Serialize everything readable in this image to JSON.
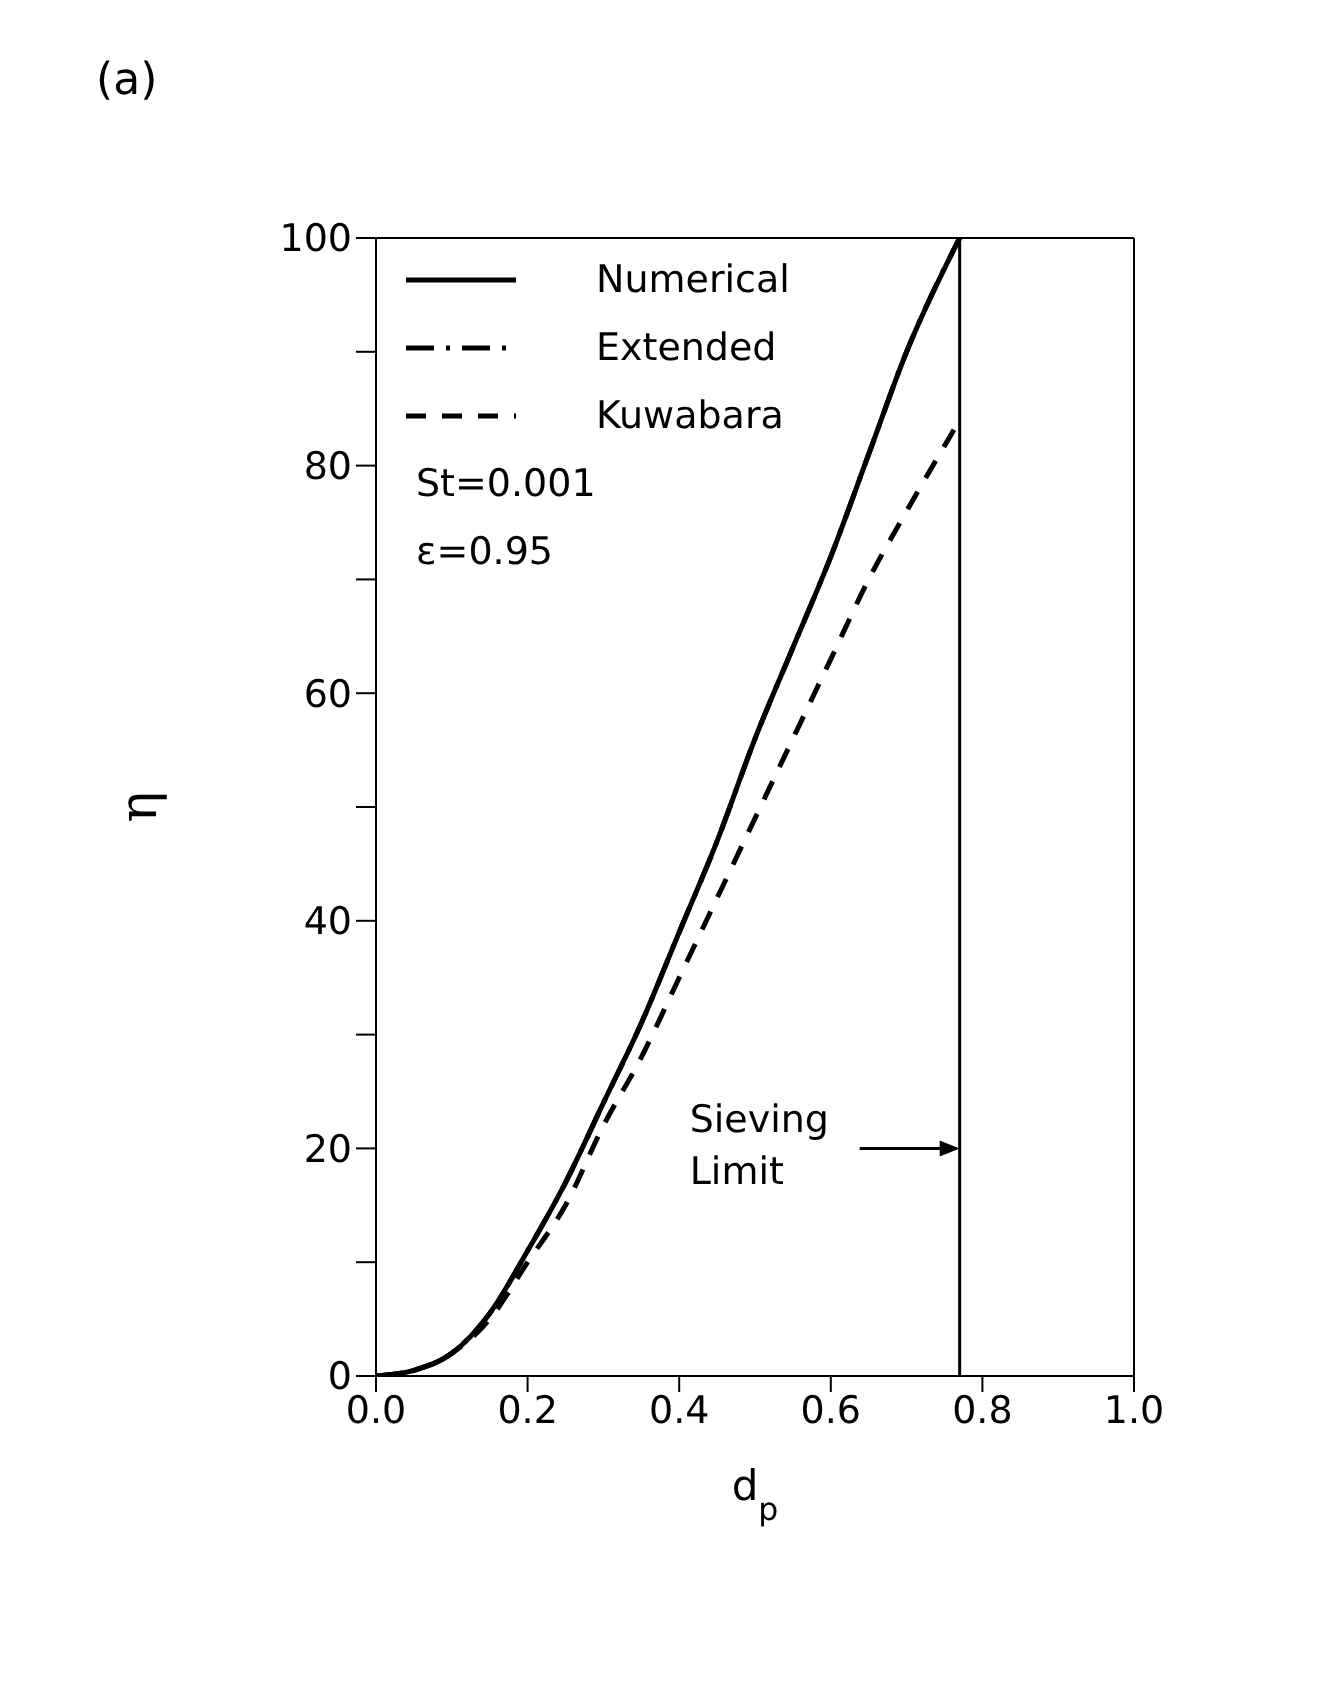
{
  "chart_data": {
    "type": "line",
    "title": "(a)",
    "xlabel": "d$_{p}$",
    "ylabel": "η",
    "xlim": [
      0,
      1
    ],
    "xticks": [
      {
        "value": 0,
        "label": "0.0"
      },
      0.2,
      0.4,
      0.6,
      0.8,
      {
        "value": 1,
        "label": "1.0"
      }
    ],
    "ylim": [
      0,
      100
    ],
    "yticks": [
      0,
      {
        "value": 10,
        "label": null
      },
      20,
      {
        "value": 30,
        "label": null
      },
      40,
      {
        "value": 50,
        "label": null
      },
      60,
      {
        "value": 70,
        "label": null
      },
      80,
      {
        "value": 90,
        "label": null
      },
      100
    ],
    "x": [
      0,
      0.05,
      0.1,
      0.15,
      0.2,
      0.25,
      0.3,
      0.35,
      0.4,
      0.45,
      0.5,
      0.55,
      0.6,
      0.65,
      0.7,
      0.77
    ],
    "series": [
      {
        "name": "Numerical",
        "color": "#000000",
        "line_style": "solid",
        "values": [
          0,
          0.5,
          2,
          5.5,
          11,
          17,
          24,
          31,
          39,
          47,
          56,
          64,
          72,
          81,
          90,
          100
        ]
      },
      {
        "name": "Extended",
        "color": "#000000",
        "line_style": "dashdot",
        "values": [
          0,
          0.5,
          2,
          5.5,
          11,
          17,
          24,
          31,
          39,
          47,
          56,
          64,
          72,
          81,
          90,
          100
        ]
      },
      {
        "name": "Kuwabara",
        "color": "#000000",
        "line_style": "dashed",
        "values": [
          0,
          0.5,
          2,
          5,
          10,
          15,
          22,
          28,
          35,
          42,
          49,
          56,
          63,
          70,
          76,
          84
        ]
      }
    ],
    "ref_lines": [
      {
        "axis": "x",
        "value": 0.77,
        "label": "Sieving Limit",
        "color": "#000000"
      }
    ],
    "annotations": [
      "St=0.001",
      "ε=0.95"
    ],
    "legend": "top left",
    "grid": false,
    "marker": "none"
  }
}
